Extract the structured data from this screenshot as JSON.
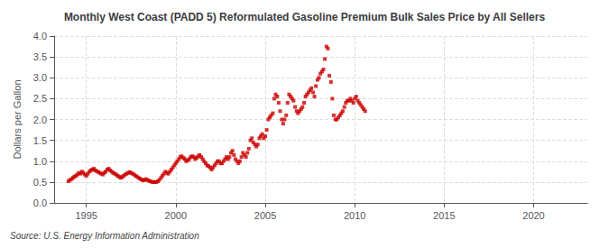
{
  "chart_data": {
    "type": "scatter",
    "title": "Monthly West Coast (PADD 5) Reformulated Gasoline Premium Bulk Sales Price by All Sellers",
    "ylabel": "Dollars per Gallon",
    "annotations": [
      "Source: U.S. Energy Information Administration"
    ],
    "color": "#cc0000",
    "marker": "square",
    "grid": true,
    "xlim": [
      1993.2,
      2023.0
    ],
    "ylim": [
      0.0,
      4.0
    ],
    "xticks": [
      1995,
      2000,
      2005,
      2010,
      2015,
      2020
    ],
    "yticks": [
      {
        "value": 0.0,
        "label": "0.0"
      },
      0.5,
      {
        "value": 1.0,
        "label": "1.0"
      },
      1.5,
      {
        "value": 2.0,
        "label": "2.0"
      },
      2.5,
      {
        "value": 3.0,
        "label": "3.0"
      },
      3.5,
      {
        "value": 4.0,
        "label": "4.0"
      }
    ],
    "x": [
      1994.0,
      1994.08,
      1994.17,
      1994.25,
      1994.33,
      1994.42,
      1994.5,
      1994.58,
      1994.67,
      1994.75,
      1994.83,
      1994.92,
      1995.0,
      1995.08,
      1995.17,
      1995.25,
      1995.33,
      1995.42,
      1995.5,
      1995.58,
      1995.67,
      1995.75,
      1995.83,
      1995.92,
      1996.0,
      1996.08,
      1996.17,
      1996.25,
      1996.33,
      1996.42,
      1996.5,
      1996.58,
      1996.67,
      1996.75,
      1996.83,
      1996.92,
      1997.0,
      1997.08,
      1997.17,
      1997.25,
      1997.33,
      1997.42,
      1997.5,
      1997.58,
      1997.67,
      1997.75,
      1997.83,
      1997.92,
      1998.0,
      1998.08,
      1998.17,
      1998.25,
      1998.33,
      1998.42,
      1998.5,
      1998.58,
      1998.67,
      1998.75,
      1998.83,
      1998.92,
      1999.0,
      1999.08,
      1999.17,
      1999.25,
      1999.33,
      1999.42,
      1999.5,
      1999.58,
      1999.67,
      1999.75,
      1999.83,
      1999.92,
      2000.0,
      2000.08,
      2000.17,
      2000.25,
      2000.33,
      2000.42,
      2000.5,
      2000.58,
      2000.67,
      2000.75,
      2000.83,
      2000.92,
      2001.0,
      2001.08,
      2001.17,
      2001.25,
      2001.33,
      2001.42,
      2001.5,
      2001.58,
      2001.67,
      2001.75,
      2001.83,
      2001.92,
      2002.0,
      2002.08,
      2002.17,
      2002.25,
      2002.33,
      2002.42,
      2002.5,
      2002.58,
      2002.67,
      2002.75,
      2002.83,
      2002.92,
      2003.0,
      2003.08,
      2003.17,
      2003.25,
      2003.33,
      2003.42,
      2003.5,
      2003.58,
      2003.67,
      2003.75,
      2003.83,
      2003.92,
      2004.0,
      2004.08,
      2004.17,
      2004.25,
      2004.33,
      2004.42,
      2004.5,
      2004.58,
      2004.67,
      2004.75,
      2004.83,
      2004.92,
      2005.0,
      2005.08,
      2005.17,
      2005.25,
      2005.33,
      2005.42,
      2005.5,
      2005.58,
      2005.67,
      2005.75,
      2005.83,
      2005.92,
      2006.0,
      2006.08,
      2006.17,
      2006.25,
      2006.33,
      2006.42,
      2006.5,
      2006.58,
      2006.67,
      2006.75,
      2006.83,
      2006.92,
      2007.0,
      2007.08,
      2007.17,
      2007.25,
      2007.33,
      2007.42,
      2007.5,
      2007.58,
      2007.67,
      2007.75,
      2007.83,
      2007.92,
      2008.0,
      2008.08,
      2008.17,
      2008.25,
      2008.33,
      2008.42,
      2008.5,
      2008.58,
      2008.67,
      2008.75,
      2008.83,
      2008.92,
      2009.0,
      2009.08,
      2009.17,
      2009.25,
      2009.33,
      2009.42,
      2009.5,
      2009.58,
      2009.67,
      2009.75,
      2009.83,
      2009.92,
      2010.0,
      2010.08,
      2010.17,
      2010.25,
      2010.33,
      2010.42,
      2010.5,
      2010.58
    ],
    "values": [
      0.52,
      0.55,
      0.57,
      0.6,
      0.63,
      0.65,
      0.68,
      0.72,
      0.7,
      0.75,
      0.72,
      0.68,
      0.65,
      0.7,
      0.75,
      0.78,
      0.8,
      0.82,
      0.78,
      0.76,
      0.74,
      0.72,
      0.7,
      0.68,
      0.72,
      0.75,
      0.8,
      0.82,
      0.78,
      0.75,
      0.72,
      0.7,
      0.68,
      0.65,
      0.63,
      0.6,
      0.62,
      0.65,
      0.68,
      0.7,
      0.72,
      0.74,
      0.72,
      0.7,
      0.68,
      0.65,
      0.63,
      0.6,
      0.58,
      0.56,
      0.54,
      0.55,
      0.57,
      0.55,
      0.53,
      0.52,
      0.5,
      0.5,
      0.5,
      0.5,
      0.52,
      0.55,
      0.6,
      0.65,
      0.7,
      0.75,
      0.72,
      0.7,
      0.75,
      0.8,
      0.85,
      0.9,
      0.95,
      1.0,
      1.05,
      1.1,
      1.12,
      1.08,
      1.05,
      1.0,
      1.02,
      1.05,
      1.1,
      1.12,
      1.1,
      1.05,
      1.08,
      1.12,
      1.15,
      1.1,
      1.05,
      1.0,
      0.95,
      0.9,
      0.88,
      0.85,
      0.8,
      0.85,
      0.9,
      0.95,
      1.0,
      1.0,
      0.95,
      0.95,
      1.0,
      1.05,
      1.1,
      1.05,
      1.1,
      1.2,
      1.25,
      1.15,
      1.05,
      1.0,
      0.95,
      1.0,
      1.1,
      1.2,
      1.15,
      1.1,
      1.2,
      1.3,
      1.5,
      1.55,
      1.45,
      1.4,
      1.35,
      1.4,
      1.55,
      1.6,
      1.65,
      1.55,
      1.6,
      1.75,
      2.0,
      2.05,
      2.1,
      2.15,
      2.5,
      2.6,
      2.55,
      2.4,
      2.2,
      2.0,
      1.9,
      2.0,
      2.1,
      2.4,
      2.6,
      2.55,
      2.5,
      2.45,
      2.3,
      2.2,
      2.15,
      2.2,
      2.25,
      2.3,
      2.4,
      2.55,
      2.6,
      2.65,
      2.7,
      2.75,
      2.65,
      2.55,
      2.8,
      2.95,
      3.0,
      3.1,
      3.15,
      3.2,
      3.45,
      3.75,
      3.7,
      3.05,
      2.9,
      2.5,
      2.1,
      2.0,
      2.0,
      2.05,
      2.1,
      2.15,
      2.2,
      2.3,
      2.4,
      2.45,
      2.45,
      2.5,
      2.45,
      2.4,
      2.5,
      2.55,
      2.45,
      2.4,
      2.35,
      2.3,
      2.25,
      2.2
    ]
  }
}
